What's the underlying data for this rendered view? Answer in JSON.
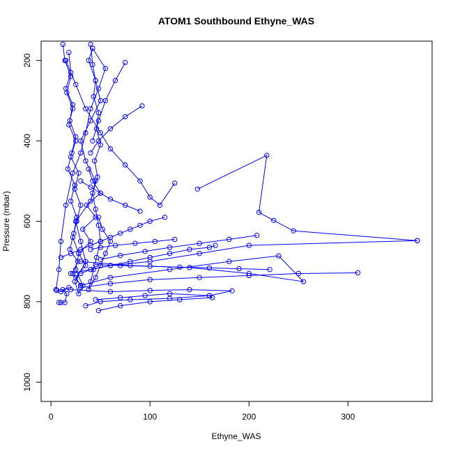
{
  "chart_data": {
    "type": "line",
    "title": "ATOM1 Southbound Ethyne_WAS",
    "xlabel": "Ethyne_WAS",
    "ylabel": "Pressure (mbar)",
    "xlim": [
      -10,
      385
    ],
    "ylim": [
      1048,
      152
    ],
    "y_reversed": true,
    "xticks": [
      0,
      100,
      200,
      300
    ],
    "yticks": [
      200,
      400,
      600,
      800,
      1000
    ],
    "grid": false,
    "legend": "none",
    "series_color": "#0000ff",
    "marker": "open-circle",
    "series": [
      {
        "x": [
          12,
          14,
          20,
          16,
          22,
          18,
          25,
          20,
          28,
          24,
          30,
          26,
          22,
          28,
          25,
          32,
          28,
          24,
          35,
          30,
          25,
          40,
          45,
          35,
          30,
          40,
          50,
          45,
          38,
          42,
          55,
          48,
          40,
          35,
          30,
          22,
          15,
          10,
          8,
          5
        ],
        "y": [
          160,
          200,
          240,
          280,
          320,
          360,
          400,
          440,
          480,
          520,
          560,
          600,
          640,
          680,
          720,
          760,
          780,
          750,
          700,
          650,
          600,
          550,
          500,
          450,
          400,
          350,
          300,
          250,
          200,
          170,
          220,
          270,
          320,
          380,
          430,
          480,
          560,
          650,
          720,
          770
        ]
      },
      {
        "x": [
          18,
          20,
          15,
          22,
          19,
          25,
          21,
          17,
          24,
          20,
          26,
          23,
          19,
          27,
          22,
          30,
          25,
          35,
          28,
          40,
          32,
          45,
          36,
          50,
          42,
          38
        ],
        "y": [
          180,
          230,
          270,
          310,
          350,
          390,
          430,
          470,
          510,
          550,
          590,
          630,
          670,
          700,
          730,
          760,
          740,
          710,
          680,
          650,
          620,
          590,
          560,
          530,
          500,
          470
        ]
      },
      {
        "x": [
          40,
          42,
          45,
          43,
          48,
          46,
          50,
          44,
          47,
          42,
          45,
          48,
          50,
          46,
          43,
          40,
          38,
          45,
          50,
          55,
          60,
          52,
          48
        ],
        "y": [
          160,
          210,
          250,
          290,
          330,
          370,
          410,
          450,
          490,
          530,
          570,
          610,
          650,
          690,
          720,
          750,
          770,
          740,
          710,
          680,
          650,
          620,
          590
        ]
      },
      {
        "x": [
          15,
          25,
          35,
          50,
          60,
          75,
          90,
          100,
          110,
          125
        ],
        "y": [
          200,
          260,
          320,
          380,
          420,
          460,
          500,
          540,
          560,
          505
        ]
      },
      {
        "x": [
          148,
          218,
          210,
          225,
          245,
          370
        ],
        "y": [
          520,
          436,
          578,
          598,
          624,
          648
        ]
      },
      {
        "x": [
          370,
          200,
          150,
          100,
          60,
          40,
          30
        ],
        "y": [
          648,
          660,
          680,
          700,
          710,
          720,
          730
        ]
      },
      {
        "x": [
          30,
          80,
          140,
          200,
          255,
          230,
          180,
          120,
          60,
          30
        ],
        "y": [
          700,
          710,
          715,
          730,
          750,
          686,
          700,
          720,
          740,
          760
        ]
      },
      {
        "x": [
          310,
          250,
          200,
          150,
          100,
          60,
          30
        ],
        "y": [
          728,
          730,
          735,
          740,
          745,
          755,
          765
        ]
      },
      {
        "x": [
          20,
          60,
          100,
          140,
          183,
          160,
          120,
          80,
          50,
          35
        ],
        "y": [
          770,
          775,
          772,
          770,
          773,
          785,
          792,
          795,
          800,
          810
        ]
      },
      {
        "x": [
          45,
          70,
          95,
          120,
          160,
          163,
          130,
          100,
          70,
          48
        ],
        "y": [
          795,
          790,
          785,
          780,
          785,
          790,
          795,
          800,
          810,
          822
        ]
      },
      {
        "x": [
          10,
          20,
          30,
          40,
          50,
          60,
          70,
          80,
          90,
          100,
          115
        ],
        "y": [
          690,
          680,
          670,
          660,
          650,
          640,
          630,
          620,
          610,
          600,
          590
        ]
      },
      {
        "x": [
          20,
          40,
          60,
          80,
          100,
          120,
          140,
          160,
          166
        ],
        "y": [
          730,
          720,
          710,
          700,
          690,
          680,
          670,
          665,
          660
        ]
      },
      {
        "x": [
          208,
          180,
          150,
          120,
          95,
          70,
          50
        ],
        "y": [
          635,
          645,
          655,
          665,
          675,
          685,
          695
        ]
      },
      {
        "x": [
          221,
          190,
          160,
          130,
          100,
          70,
          45
        ],
        "y": [
          720,
          718,
          716,
          714,
          712,
          710,
          708
        ]
      },
      {
        "x": [
          125,
          105,
          85,
          65,
          50,
          40
        ],
        "y": [
          645,
          650,
          655,
          660,
          665,
          670
        ]
      },
      {
        "x": [
          92,
          75,
          60,
          48,
          40
        ],
        "y": [
          313,
          340,
          370,
          400,
          430
        ]
      },
      {
        "x": [
          75,
          65,
          55,
          48,
          42
        ],
        "y": [
          205,
          250,
          300,
          350,
          400
        ]
      },
      {
        "x": [
          90,
          75,
          60,
          50,
          40,
          30
        ],
        "y": [
          575,
          560,
          545,
          530,
          515,
          500
        ]
      },
      {
        "x": [
          8,
          10,
          14,
          16,
          12,
          18,
          10,
          6,
          5
        ],
        "y": [
          802,
          802,
          802,
          780,
          770,
          765,
          775,
          772,
          770
        ]
      }
    ]
  }
}
